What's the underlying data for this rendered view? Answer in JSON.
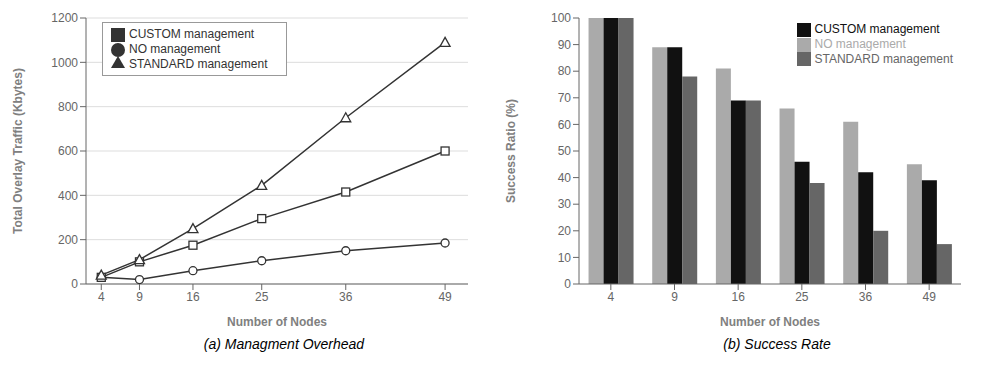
{
  "chart_data": [
    {
      "type": "line",
      "title": "(a) Managment Overhead",
      "x_label": "Number of Nodes",
      "y_label": "Total Overlay Traffic (Kbytes)",
      "x": [
        4,
        9,
        16,
        25,
        36,
        49
      ],
      "xlim": [
        2,
        52
      ],
      "xticks": [
        4,
        9,
        16,
        25,
        36,
        49
      ],
      "ylim": [
        0,
        1200
      ],
      "yticks": [
        0,
        200,
        400,
        600,
        800,
        1000,
        1200
      ],
      "grid": true,
      "legend": "upper left",
      "series": [
        {
          "name": "NO management",
          "color": "#333333",
          "marker": "circle",
          "values": [
            30,
            20,
            60,
            105,
            150,
            185
          ]
        },
        {
          "name": "CUSTOM management",
          "color": "#333333",
          "marker": "square",
          "values": [
            30,
            100,
            175,
            295,
            415,
            600
          ]
        },
        {
          "name": "STANDARD management",
          "color": "#333333",
          "marker": "triangle",
          "values": [
            40,
            110,
            250,
            445,
            750,
            1090
          ]
        }
      ]
    },
    {
      "type": "bar",
      "title": "(b) Success Rate",
      "x_label": "Number of Nodes",
      "y_label": "Success Ratio (%)",
      "categories": [
        "4",
        "9",
        "16",
        "25",
        "36",
        "49"
      ],
      "ylim": [
        0,
        100
      ],
      "yticks": [
        0,
        10,
        20,
        30,
        40,
        50,
        60,
        70,
        80,
        90,
        100
      ],
      "grid": false,
      "legend": "upper right",
      "series": [
        {
          "name": "NO management",
          "color": "#aaaaaa",
          "values": [
            100,
            89,
            81,
            66,
            61,
            45
          ]
        },
        {
          "name": "CUSTOM management",
          "color": "#111111",
          "values": [
            100,
            89,
            69,
            46,
            42,
            39
          ]
        },
        {
          "name": "STANDARD management",
          "color": "#666666",
          "values": [
            100,
            78,
            69,
            38,
            20,
            15
          ]
        }
      ]
    }
  ]
}
